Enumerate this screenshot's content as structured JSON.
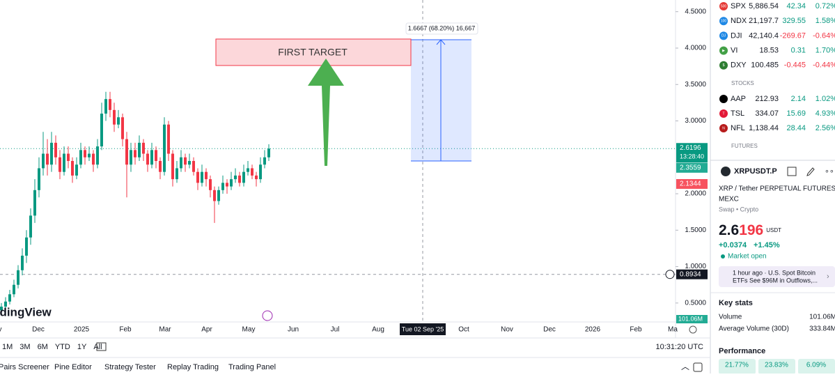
{
  "chart_data": {
    "type": "candlestick",
    "ohlc": [
      [
        0.4,
        0.5,
        0.35,
        0.45
      ],
      [
        0.45,
        0.58,
        0.42,
        0.52
      ],
      [
        0.52,
        0.68,
        0.48,
        0.62
      ],
      [
        0.62,
        0.82,
        0.58,
        0.75
      ],
      [
        0.75,
        1.02,
        0.7,
        0.95
      ],
      [
        0.95,
        1.25,
        0.88,
        1.15
      ],
      [
        1.15,
        1.5,
        1.05,
        1.4
      ],
      [
        1.4,
        1.8,
        1.3,
        1.7
      ],
      [
        1.7,
        2.2,
        1.6,
        2.05
      ],
      [
        2.05,
        2.5,
        1.95,
        2.35
      ],
      [
        2.35,
        2.85,
        2.25,
        2.55
      ],
      [
        2.55,
        2.75,
        2.25,
        2.4
      ],
      [
        2.4,
        2.85,
        2.3,
        2.7
      ],
      [
        2.7,
        2.8,
        2.4,
        2.5
      ],
      [
        2.5,
        2.6,
        2.2,
        2.3
      ],
      [
        2.3,
        2.65,
        2.25,
        2.55
      ],
      [
        2.55,
        2.65,
        2.35,
        2.45
      ],
      [
        2.45,
        2.5,
        2.15,
        2.25
      ],
      [
        2.25,
        2.5,
        2.2,
        2.4
      ],
      [
        2.4,
        2.7,
        2.35,
        2.6
      ],
      [
        2.6,
        2.65,
        2.4,
        2.5
      ],
      [
        2.5,
        2.65,
        2.45,
        2.55
      ],
      [
        2.55,
        2.6,
        2.3,
        2.4
      ],
      [
        2.4,
        2.75,
        2.35,
        2.65
      ],
      [
        2.65,
        3.25,
        2.6,
        3.1
      ],
      [
        3.1,
        3.4,
        3.0,
        3.3
      ],
      [
        3.3,
        3.4,
        3.05,
        3.15
      ],
      [
        3.15,
        3.25,
        2.85,
        2.95
      ],
      [
        2.95,
        3.15,
        2.9,
        3.05
      ],
      [
        3.05,
        3.1,
        2.65,
        2.75
      ],
      [
        2.75,
        2.85,
        1.95,
        2.4
      ],
      [
        2.4,
        2.7,
        2.3,
        2.6
      ],
      [
        2.6,
        2.7,
        2.4,
        2.5
      ],
      [
        2.5,
        2.8,
        2.45,
        2.7
      ],
      [
        2.7,
        2.75,
        2.45,
        2.55
      ],
      [
        2.55,
        2.6,
        2.3,
        2.4
      ],
      [
        2.4,
        2.7,
        2.35,
        2.6
      ],
      [
        2.6,
        2.65,
        2.35,
        2.45
      ],
      [
        2.45,
        2.5,
        2.2,
        2.3
      ],
      [
        2.3,
        3.05,
        2.25,
        2.95
      ],
      [
        2.95,
        3.0,
        2.45,
        2.55
      ],
      [
        2.55,
        2.6,
        2.1,
        2.2
      ],
      [
        2.2,
        2.45,
        2.15,
        2.35
      ],
      [
        2.35,
        2.6,
        2.3,
        2.5
      ],
      [
        2.5,
        2.55,
        2.3,
        2.4
      ],
      [
        2.4,
        2.55,
        2.35,
        2.45
      ],
      [
        2.45,
        2.5,
        2.25,
        2.3
      ],
      [
        2.3,
        2.35,
        2.05,
        2.15
      ],
      [
        2.15,
        2.4,
        2.1,
        2.3
      ],
      [
        2.3,
        2.35,
        2.1,
        2.2
      ],
      [
        2.2,
        2.25,
        1.95,
        2.05
      ],
      [
        2.05,
        2.1,
        1.6,
        1.9
      ],
      [
        1.9,
        2.1,
        1.85,
        2.05
      ],
      [
        2.05,
        2.25,
        2.0,
        2.15
      ],
      [
        2.15,
        2.2,
        2.0,
        2.1
      ],
      [
        2.1,
        2.3,
        2.05,
        2.2
      ],
      [
        2.2,
        2.35,
        2.15,
        2.25
      ],
      [
        2.25,
        2.3,
        2.1,
        2.15
      ],
      [
        2.15,
        2.4,
        2.1,
        2.3
      ],
      [
        2.3,
        2.45,
        2.25,
        2.35
      ],
      [
        2.35,
        2.4,
        2.2,
        2.25
      ],
      [
        2.25,
        2.3,
        2.1,
        2.2
      ],
      [
        2.2,
        2.5,
        2.15,
        2.4
      ],
      [
        2.4,
        2.6,
        2.35,
        2.5
      ],
      [
        2.5,
        2.68,
        2.45,
        2.62
      ]
    ],
    "up_color": "#089981",
    "down_color": "#f23645",
    "ylim": [
      0.24,
      4.66
    ],
    "yticks": [
      {
        "value": 0.5,
        "label": "0.5000"
      },
      {
        "value": 1,
        "label": "1.0000"
      },
      {
        "value": 1.5,
        "label": "1.5000"
      },
      {
        "value": 2,
        "label": "2.0000"
      },
      {
        "value": 3,
        "label": "3.0000"
      },
      {
        "value": 3.5,
        "label": "3.5000"
      },
      {
        "value": 4,
        "label": "4.0000"
      },
      {
        "value": 4.5,
        "label": "4.5000"
      }
    ],
    "x_labels": [
      "v",
      "Dec",
      "2025",
      "Feb",
      "Mar",
      "Apr",
      "May",
      "Jun",
      "Jul",
      "Aug",
      "Tue 02 Sep '25",
      "Oct",
      "Nov",
      "Dec",
      "2026",
      "Feb",
      "Ma"
    ],
    "last_price": 2.6196,
    "countdown": "13:28:40",
    "price_tags": [
      {
        "value": 2.3559,
        "color": "#22ab94"
      },
      {
        "value": 2.1344,
        "color": "#f7525f"
      }
    ],
    "crosshair_price": 0.8934,
    "volume_tag": "101.06M",
    "target_label": "FIRST TARGET",
    "measure_label": "1.6667 (68.20%) 16,667",
    "watermark": "adingView"
  },
  "toolbar": {
    "timeframes": [
      "1M",
      "3M",
      "6M",
      "YTD",
      "1Y",
      "All"
    ],
    "clock": "10:31:20 UTC"
  },
  "tabs": [
    "Pairs Screener",
    "Pine Editor",
    "Strategy Tester",
    "Replay Trading",
    "Trading Panel"
  ],
  "watchlist": {
    "indices": [
      {
        "symbol": "SPX",
        "price": "5,886.54",
        "change": "42.34",
        "change_pct": "0.72%",
        "icon": "500",
        "icon_color": "#e53935"
      },
      {
        "symbol": "NDX",
        "price": "21,197.7",
        "change": "329.55",
        "change_pct": "1.58%",
        "icon": "100",
        "icon_color": "#1e88e5"
      },
      {
        "symbol": "DJI",
        "price": "42,140.4",
        "change": "-269.67",
        "change_pct": "-0.64%",
        "icon": "DJ",
        "icon_color": "#1e88e5"
      },
      {
        "symbol": "VI",
        "price": "18.53",
        "change": "0.31",
        "change_pct": "1.70%",
        "icon": "▶",
        "icon_color": "#43a047"
      },
      {
        "symbol": "DXY",
        "price": "100.485",
        "change": "-0.445",
        "change_pct": "-0.44%",
        "icon": "$",
        "icon_color": "#2e7d32"
      }
    ],
    "stocks_header": "STOCKS",
    "stocks": [
      {
        "symbol": "AAP",
        "price": "212.93",
        "change": "2.14",
        "change_pct": "1.02%",
        "icon": "",
        "icon_color": "#000000"
      },
      {
        "symbol": "TSL",
        "price": "334.07",
        "change": "15.69",
        "change_pct": "4.93%",
        "icon": "T",
        "icon_color": "#e31937"
      },
      {
        "symbol": "NFL",
        "price": "1,138.44",
        "change": "28.44",
        "change_pct": "2.56%",
        "icon": "N",
        "icon_color": "#b71c1c"
      }
    ],
    "futures_header": "FUTURES"
  },
  "details": {
    "symbol": "XRPUSDT.P",
    "description": "XRP / Tether PERPETUAL FUTURES",
    "exchange": "MEXC",
    "kind": "Swap • Crypto",
    "price_main": "2.6",
    "price_tail": "196",
    "currency": "USDT",
    "change": "+0.0374",
    "change_pct": "+1.45%",
    "status": "Market open",
    "news_time": "1 hour ago · U.S. Spot Bitcoin",
    "news_text": "ETFs See $96M in Outflows,...",
    "key_stats": "Key stats",
    "volume_label": "Volume",
    "volume": "101.06M",
    "avg_volume_label": "Average Volume (30D)",
    "avg_volume": "333.84M",
    "performance": "Performance",
    "perf": [
      "21.77%",
      "23.83%",
      "6.09%"
    ]
  }
}
